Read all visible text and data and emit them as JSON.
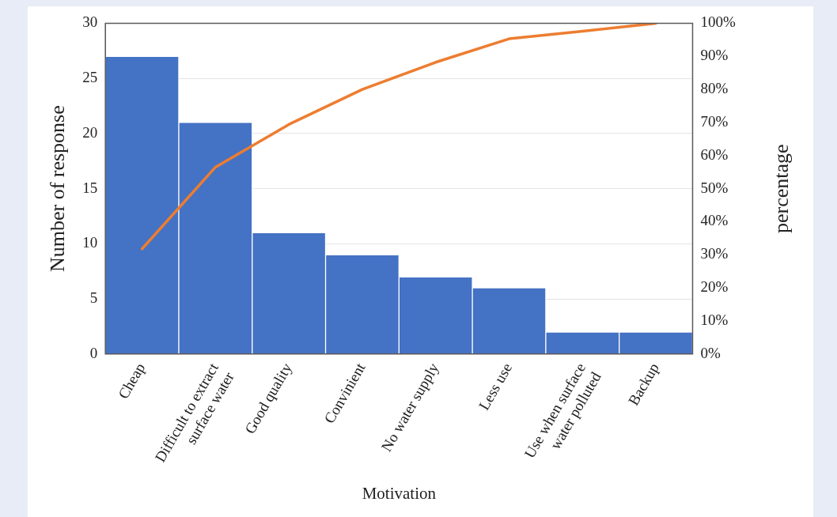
{
  "chart_data": {
    "type": "bar",
    "xlabel": "Motivation",
    "ylabel": "Number of response",
    "y2label": "percentage",
    "categories": [
      "Cheap",
      "Difficult to extract\nsurface water",
      "Good quality",
      "Convinient",
      "No water supply",
      "Less use",
      "Use when surface\nwater polluted",
      "Backup"
    ],
    "series": [
      {
        "color": "#4472c4",
        "values": [
          27,
          21,
          11,
          9,
          7,
          6,
          2,
          2
        ]
      },
      {
        "type": "line",
        "axis": "y2",
        "color": "#ed7d31",
        "marker": "none",
        "values": [
          31.8,
          56.5,
          69.4,
          80.0,
          88.2,
          95.3,
          97.6,
          100
        ]
      }
    ],
    "ylim": [
      0,
      30
    ],
    "yticks": [
      0,
      5,
      10,
      15,
      20,
      25,
      30
    ],
    "y2lim": [
      0,
      100
    ],
    "y2ticks": [
      {
        "value": 0,
        "label": "0%"
      },
      {
        "value": 10,
        "label": "10%"
      },
      {
        "value": 20,
        "label": "20%"
      },
      {
        "value": 30,
        "label": "30%"
      },
      {
        "value": 40,
        "label": "40%"
      },
      {
        "value": 50,
        "label": "50%"
      },
      {
        "value": 60,
        "label": "60%"
      },
      {
        "value": 70,
        "label": "70%"
      },
      {
        "value": 80,
        "label": "80%"
      },
      {
        "value": 90,
        "label": "90%"
      },
      {
        "value": 100,
        "label": "100%"
      }
    ],
    "grid": "y",
    "legend": false
  }
}
